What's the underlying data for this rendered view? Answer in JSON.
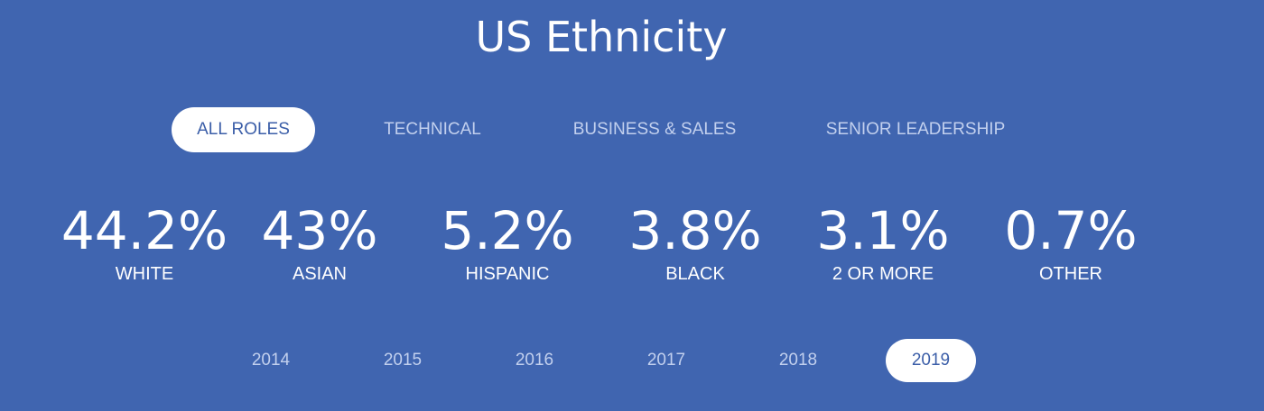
{
  "header": {
    "title": "US Ethnicity"
  },
  "role_tabs": [
    {
      "label": "ALL ROLES",
      "active": true
    },
    {
      "label": "TECHNICAL",
      "active": false
    },
    {
      "label": "BUSINESS & SALES",
      "active": false
    },
    {
      "label": "SENIOR LEADERSHIP",
      "active": false
    }
  ],
  "stats": [
    {
      "value": "44.2%",
      "label": "WHITE"
    },
    {
      "value": "43%",
      "label": "ASIAN"
    },
    {
      "value": "5.2%",
      "label": "HISPANIC"
    },
    {
      "value": "3.8%",
      "label": "BLACK"
    },
    {
      "value": "3.1%",
      "label": "2 OR MORE"
    },
    {
      "value": "0.7%",
      "label": "OTHER"
    }
  ],
  "year_tabs": [
    {
      "label": "2014",
      "active": false
    },
    {
      "label": "2015",
      "active": false
    },
    {
      "label": "2016",
      "active": false
    },
    {
      "label": "2017",
      "active": false
    },
    {
      "label": "2018",
      "active": false
    },
    {
      "label": "2019",
      "active": true
    }
  ],
  "colors": {
    "background": "#4065b0",
    "active_pill_bg": "#ffffff",
    "active_pill_text": "#3b5ea8",
    "inactive_text": "#c2d0ee",
    "stat_text": "#ffffff"
  }
}
